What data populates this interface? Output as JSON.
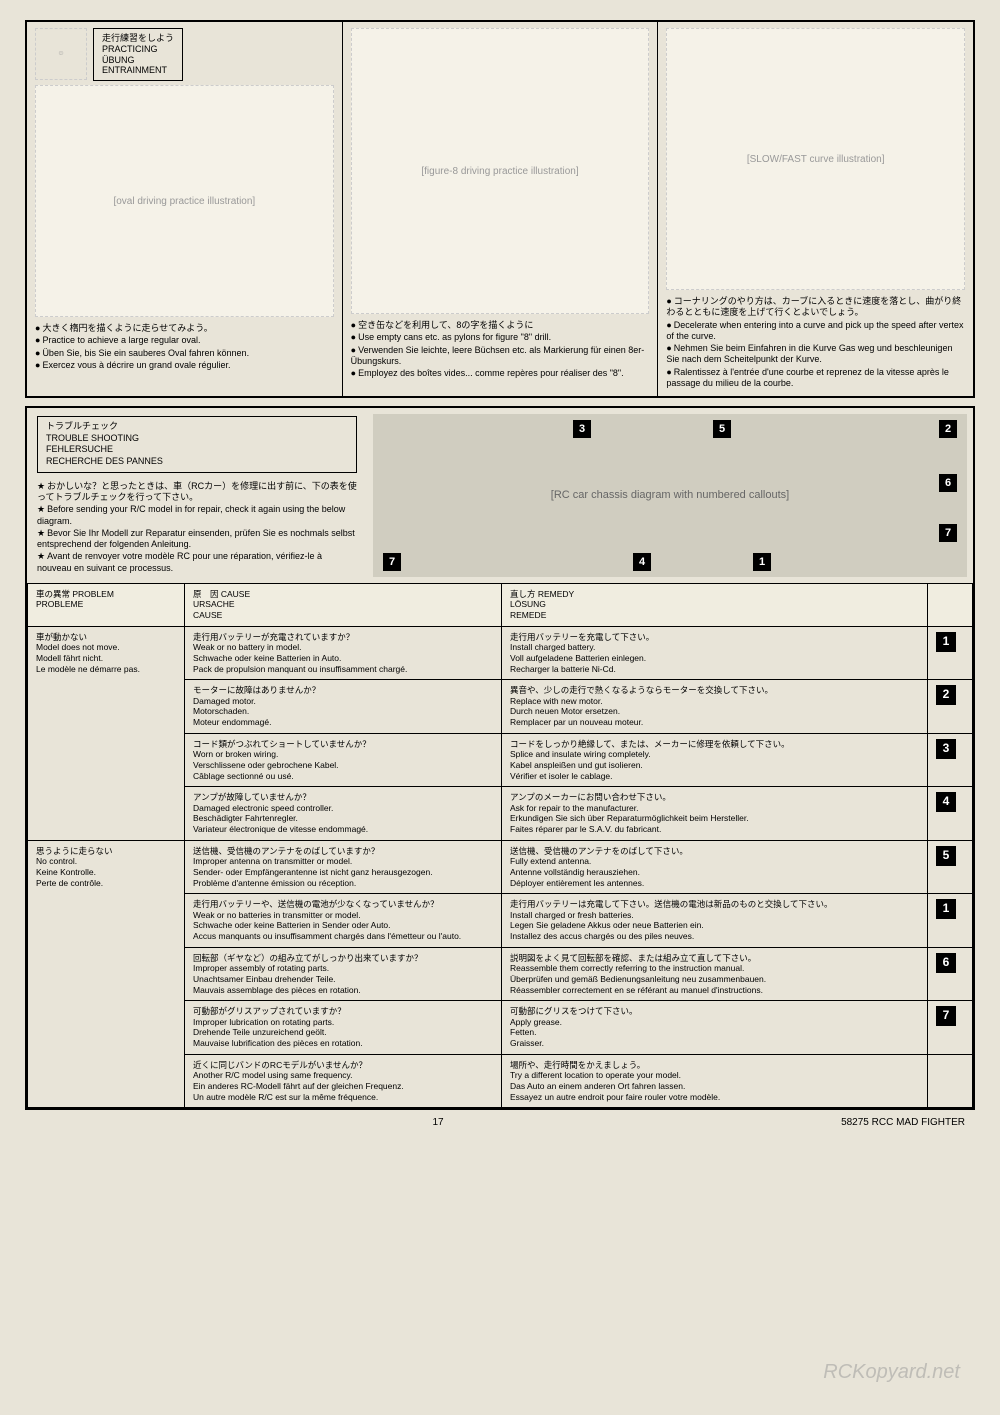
{
  "practice": {
    "titles": [
      "走行練習をしよう",
      "PRACTICING",
      "ÜBUNG",
      "ENTRAINMENT"
    ],
    "col1": {
      "img": "[oval driving practice illustration]",
      "lines": [
        "大きく楕円を描くように走らせてみよう。",
        "Practice to achieve a large regular oval.",
        "Üben Sie, bis Sie ein sauberes Oval fahren können.",
        "Exercez vous à décrire un grand ovale régulier."
      ]
    },
    "col2": {
      "img": "[figure-8 driving practice illustration]",
      "lines": [
        "空き缶などを利用して、8の字を描くように",
        "Use empty cans etc. as pylons for figure \"8\" drill.",
        "Verwenden Sie leichte, leere Büchsen etc. als Markierung für einen 8er-Übungskurs.",
        "Employez des boîtes vides... comme repères pour réaliser des \"8\"."
      ]
    },
    "col3": {
      "img": "[SLOW/FAST curve illustration]",
      "lines": [
        "コーナリングのやり方は、カーブに入るときに速度を落とし、曲がり終わるとともに速度を上げて行くとよいでしょう。",
        "Decelerate when entering into a curve and pick up the speed after vertex of the curve.",
        "Nehmen Sie beim Einfahren in die Kurve Gas weg und beschleunigen Sie nach dem Scheitelpunkt der Kurve.",
        "Ralentissez à l'entrée d'une courbe et reprenez de la vitesse après le passage du milieu de la courbe."
      ]
    }
  },
  "trouble": {
    "titles": [
      "トラブルチェック",
      "TROUBLE SHOOTING",
      "FEHLERSUCHE",
      "RECHERCHE DES PANNES"
    ],
    "intro": [
      "おかしいな？と思ったときは、車（RCカー）を修理に出す前に、下の表を使ってトラブルチェックを行って下さい。",
      "Before sending your R/C model in for repair, check it again using the below diagram.",
      "Bevor Sie Ihr Modell zur Reparatur einsenden, prüfen Sie es nochmals selbst entsprechend der folgenden Anleitung.",
      "Avant de renvoyer votre modèle RC pour une réparation, vérifiez-le à nouveau en suivant ce processus."
    ],
    "chassisLabel": "[RC car chassis diagram with numbered callouts]",
    "headers": {
      "problem": [
        "車の異常 PROBLEM",
        "PROBLEME"
      ],
      "cause": [
        "原　因  CAUSE",
        "URSACHE",
        "CAUSE"
      ],
      "remedy": [
        "直し方  REMEDY",
        "LÖSUNG",
        "REMEDE"
      ]
    },
    "rows": [
      {
        "problem": [
          "車が動かない",
          "Model does not move.",
          "Modell fährt nicht.",
          "Le modèle ne démarre pas."
        ],
        "items": [
          {
            "cause": [
              "走行用バッテリーが充電されていますか？",
              "Weak or no battery in model.",
              "Schwache oder keine Batterien in Auto.",
              "Pack de propulsion manquant ou insuffisamment chargé."
            ],
            "remedy": [
              "走行用バッテリーを充電して下さい。",
              "Install charged battery.",
              "Voll aufgeladene Batterien einlegen.",
              "Recharger la batterie Ni-Cd."
            ],
            "num": "1"
          },
          {
            "cause": [
              "モーターに故障はありませんか？",
              "Damaged motor.",
              "Motorschaden.",
              "Moteur endommagé."
            ],
            "remedy": [
              "異音や、少しの走行で熱くなるようならモーターを交換して下さい。",
              "Replace with new motor.",
              "Durch neuen Motor ersetzen.",
              "Remplacer par un nouveau moteur."
            ],
            "num": "2"
          },
          {
            "cause": [
              "コード類がつぶれてショートしていませんか？",
              "Worn or broken wiring.",
              "Verschlissene oder gebrochene Kabel.",
              "Câblage sectionné ou usé."
            ],
            "remedy": [
              "コードをしっかり絶縁して、または、メーカーに修理を依頼して下さい。",
              "Splice and insulate wiring completely.",
              "Kabel anspleißen und gut isolieren.",
              "Vérifier et isoler le cablage."
            ],
            "num": "3"
          },
          {
            "cause": [
              "アンプが故障していませんか？",
              "Damaged electronic speed controller.",
              "Beschädigter Fahrtenregler.",
              "Variateur électronique de vitesse endommagé."
            ],
            "remedy": [
              "アンプのメーカーにお問い合わせ下さい。",
              "Ask for repair to the manufacturer.",
              "Erkundigen Sie sich über Reparaturmöglichkeit beim Hersteller.",
              "Faites réparer par le S.A.V. du fabricant."
            ],
            "num": "4"
          }
        ]
      },
      {
        "problem": [
          "思うように走らない",
          "No control.",
          "Keine Kontrolle.",
          "Perte de contrôle."
        ],
        "items": [
          {
            "cause": [
              "送信機、受信機のアンテナをのばしていますか？",
              "Improper antenna on transmitter or model.",
              "Sender- oder Empfängerantenne ist nicht ganz herausgezogen.",
              "Problème d'antenne émission ou réception."
            ],
            "remedy": [
              "送信機、受信機のアンテナをのばして下さい。",
              "Fully extend antenna.",
              "Antenne vollständig herausziehen.",
              "Déployer entièrement les antennes."
            ],
            "num": "5"
          },
          {
            "cause": [
              "走行用バッテリーや、送信機の電池が少なくなっていませんか？",
              "Weak or no batteries in transmitter or model.",
              "Schwache oder keine Batterien in Sender oder Auto.",
              "Accus manquants ou insuffisamment chargés dans l'émetteur ou l'auto."
            ],
            "remedy": [
              "走行用バッテリーは充電して下さい。送信機の電池は新品のものと交換して下さい。",
              "Install charged or fresh batteries.",
              "Legen Sie geladene Akkus oder neue Batterien ein.",
              "Installez des accus chargés ou des piles neuves."
            ],
            "num": "1"
          },
          {
            "cause": [
              "回転部（ギヤなど）の組み立てがしっかり出来ていますか？",
              "Improper assembly of rotating parts.",
              "Unachtsamer Einbau drehender Teile.",
              "Mauvais assemblage des pièces en rotation."
            ],
            "remedy": [
              "説明図をよく見て回転部を確認、または組み立て直して下さい。",
              "Reassemble them correctly referring to the instruction manual.",
              "Überprüfen und gemäß Bedienungsanleitung neu zusammenbauen.",
              "Réassembler correctement en se référant au manuel d'instructions."
            ],
            "num": "6"
          },
          {
            "cause": [
              "可動部がグリスアップされていますか？",
              "Improper lubrication on rotating parts.",
              "Drehende Teile unzureichend geölt.",
              "Mauvaise lubrification des pièces en rotation."
            ],
            "remedy": [
              "可動部にグリスをつけて下さい。",
              "Apply grease.",
              "Fetten.",
              "Graisser."
            ],
            "num": "7"
          },
          {
            "cause": [
              "近くに同じバンドのRCモデルがいませんか？",
              "Another R/C model using same frequency.",
              "Ein anderes RC-Modell fährt auf der gleichen Frequenz.",
              "Un autre modèle R/C est sur la même fréquence."
            ],
            "remedy": [
              "場所や、走行時間をかえましょう。",
              "Try a different location to operate your model.",
              "Das Auto an einem anderen Ort fahren lassen.",
              "Essayez un autre endroit pour faire rouler votre modèle."
            ],
            "num": ""
          }
        ]
      }
    ]
  },
  "footer": {
    "page": "17",
    "code": "58275 RCC MAD FIGHTER"
  },
  "watermark": "RCKopyard.net"
}
